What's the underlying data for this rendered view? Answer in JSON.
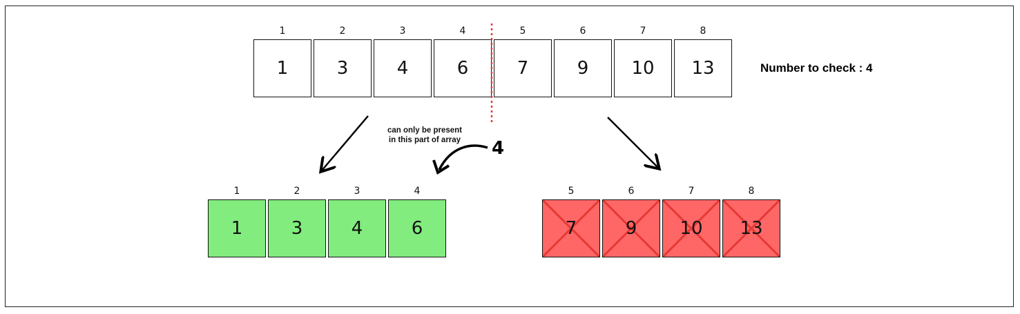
{
  "top_array": {
    "indices": [
      "1",
      "2",
      "3",
      "4",
      "5",
      "6",
      "7",
      "8"
    ],
    "values": [
      "1",
      "3",
      "4",
      "6",
      "7",
      "9",
      "10",
      "13"
    ]
  },
  "target_label": "Number to check : 4",
  "left_half": {
    "indices": [
      "1",
      "2",
      "3",
      "4"
    ],
    "values": [
      "1",
      "3",
      "4",
      "6"
    ],
    "color": "#82ec7e"
  },
  "right_half": {
    "indices": [
      "5",
      "6",
      "7",
      "8"
    ],
    "values": [
      "7",
      "9",
      "10",
      "13"
    ],
    "color": "#ff6767",
    "crossed_out": true
  },
  "annotation": {
    "note_line1": "can only be present",
    "note_line2": "in this part of array",
    "number": "4"
  },
  "colors": {
    "divider": "#e53935",
    "cross": "#e53935",
    "border": "#111111"
  }
}
